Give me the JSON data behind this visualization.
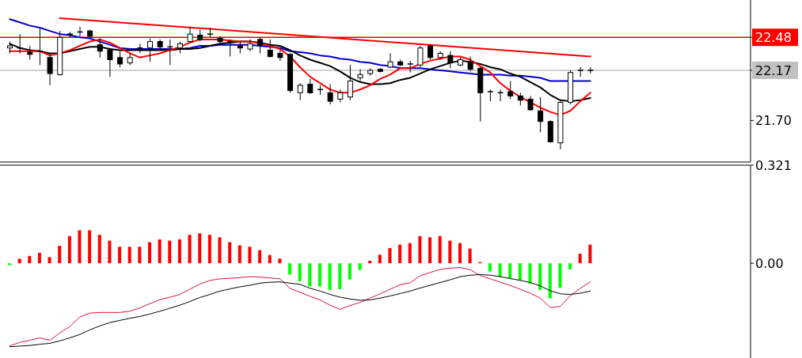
{
  "chart_data": [
    {
      "type": "candlestick",
      "categories": [
        null,
        null,
        null,
        null,
        null,
        null,
        null,
        null,
        null,
        null,
        null,
        null,
        null,
        null,
        null,
        null,
        null,
        null,
        null,
        null,
        null,
        null,
        null,
        null,
        null,
        null,
        null,
        null,
        null,
        null,
        null,
        null,
        null,
        null,
        null,
        null,
        null,
        null,
        null,
        null,
        null,
        null,
        null,
        null,
        null,
        null,
        null,
        null,
        null,
        null,
        null,
        null,
        null,
        null,
        null,
        null,
        null,
        null,
        null
      ],
      "ohlc": [
        [
          22.38,
          22.44,
          22.33,
          22.4
        ],
        [
          22.37,
          22.51,
          22.33,
          22.38
        ],
        [
          22.34,
          22.4,
          22.27,
          22.32
        ],
        [
          22.35,
          22.56,
          22.22,
          22.34
        ],
        [
          22.29,
          22.33,
          22.03,
          22.14
        ],
        [
          22.13,
          22.54,
          22.12,
          22.48
        ],
        [
          22.5,
          22.53,
          22.48,
          22.51
        ],
        [
          22.53,
          22.58,
          22.49,
          22.52
        ],
        [
          22.54,
          22.55,
          22.48,
          22.49
        ],
        [
          22.41,
          22.47,
          22.29,
          22.35
        ],
        [
          22.36,
          22.38,
          22.11,
          22.27
        ],
        [
          22.29,
          22.35,
          22.2,
          22.23
        ],
        [
          22.24,
          22.33,
          22.22,
          22.29
        ],
        [
          22.37,
          22.42,
          22.33,
          22.38
        ],
        [
          22.38,
          22.47,
          22.25,
          22.44
        ],
        [
          22.44,
          22.46,
          22.37,
          22.39
        ],
        [
          22.39,
          22.46,
          22.22,
          22.38
        ],
        [
          22.38,
          22.44,
          22.33,
          22.42
        ],
        [
          22.44,
          22.58,
          22.43,
          22.51
        ],
        [
          22.5,
          22.55,
          22.44,
          22.46
        ],
        [
          22.51,
          22.57,
          22.48,
          22.5
        ],
        [
          22.47,
          22.49,
          22.42,
          22.44
        ],
        [
          22.44,
          22.46,
          22.3,
          22.43
        ],
        [
          22.4,
          22.44,
          22.33,
          22.38
        ],
        [
          22.37,
          22.46,
          22.35,
          22.42
        ],
        [
          22.46,
          22.48,
          22.33,
          22.4
        ],
        [
          22.36,
          22.46,
          22.29,
          22.3
        ],
        [
          22.33,
          22.36,
          22.26,
          22.29
        ],
        [
          22.32,
          22.33,
          21.96,
          21.98
        ],
        [
          21.96,
          22.05,
          21.89,
          22.03
        ],
        [
          22.04,
          22.09,
          21.95,
          21.96
        ],
        [
          21.99,
          22.03,
          21.94,
          21.98
        ],
        [
          21.96,
          22.04,
          21.85,
          21.88
        ],
        [
          21.9,
          21.99,
          21.87,
          21.96
        ],
        [
          21.92,
          22.22,
          21.89,
          22.07
        ],
        [
          22.1,
          22.18,
          22.07,
          22.13
        ],
        [
          22.14,
          22.19,
          22.12,
          22.17
        ],
        [
          22.18,
          22.19,
          22.15,
          22.16
        ],
        [
          22.2,
          22.33,
          22.19,
          22.25
        ],
        [
          22.25,
          22.27,
          22.21,
          22.22
        ],
        [
          22.23,
          22.26,
          22.15,
          22.22
        ],
        [
          22.22,
          22.4,
          22.2,
          22.38
        ],
        [
          22.4,
          22.41,
          22.27,
          22.29
        ],
        [
          22.29,
          22.35,
          22.27,
          22.33
        ],
        [
          22.31,
          22.35,
          22.19,
          22.24
        ],
        [
          22.22,
          22.29,
          22.21,
          22.27
        ],
        [
          22.25,
          22.3,
          22.16,
          22.18
        ],
        [
          22.19,
          22.2,
          21.69,
          21.96
        ],
        [
          21.97,
          21.99,
          21.88,
          21.96
        ],
        [
          21.96,
          21.99,
          21.88,
          21.95
        ],
        [
          21.97,
          22.07,
          21.9,
          21.93
        ],
        [
          21.93,
          21.96,
          21.84,
          21.89
        ],
        [
          21.9,
          21.93,
          21.79,
          21.8
        ],
        [
          21.79,
          21.92,
          21.59,
          21.69
        ],
        [
          21.69,
          21.7,
          21.49,
          21.5
        ],
        [
          21.49,
          21.88,
          21.43,
          21.87
        ],
        [
          21.87,
          22.17,
          21.85,
          22.15
        ],
        [
          22.17,
          22.2,
          22.11,
          22.17
        ],
        [
          22.17,
          22.2,
          22.14,
          22.17
        ]
      ],
      "series": [
        {
          "type": "line",
          "color": "#0000cd",
          "values": [
            22.65,
            22.62,
            22.59,
            22.57,
            22.54,
            22.51,
            22.5,
            22.48,
            22.47,
            22.44,
            22.41,
            22.38,
            22.37,
            22.37,
            22.37,
            22.37,
            22.37,
            22.37,
            22.38,
            22.4,
            22.4,
            22.41,
            22.41,
            22.41,
            22.41,
            22.4,
            22.39,
            22.38,
            22.35,
            22.34,
            22.33,
            22.31,
            22.3,
            22.28,
            22.27,
            22.25,
            22.24,
            22.22,
            22.21,
            22.19,
            22.19,
            22.19,
            22.18,
            22.17,
            22.16,
            22.15,
            22.14,
            22.13,
            22.13,
            22.13,
            22.12,
            22.12,
            22.11,
            22.1,
            22.07,
            22.07,
            22.07,
            22.07,
            22.07
          ]
        },
        {
          "type": "line",
          "color": "#000000",
          "values": [
            22.42,
            22.38,
            22.36,
            22.35,
            22.33,
            22.33,
            22.35,
            22.37,
            22.39,
            22.39,
            22.37,
            22.36,
            22.36,
            22.36,
            22.36,
            22.36,
            22.36,
            22.37,
            22.37,
            22.38,
            22.4,
            22.42,
            22.43,
            22.44,
            22.44,
            22.43,
            22.41,
            22.4,
            22.36,
            22.31,
            22.27,
            22.24,
            22.21,
            22.16,
            22.1,
            22.06,
            22.04,
            22.04,
            22.05,
            22.08,
            22.1,
            22.14,
            22.18,
            22.21,
            22.24,
            22.26,
            22.25,
            22.23,
            22.2,
            22.18,
            22.14,
            22.11,
            22.06,
            22.01,
            21.94,
            21.89,
            21.88,
            21.89,
            21.91
          ]
        },
        {
          "type": "line",
          "color": "#ff0000",
          "values": [
            22.35,
            22.35,
            22.35,
            22.35,
            22.31,
            22.33,
            22.36,
            22.4,
            22.44,
            22.46,
            22.43,
            22.38,
            22.33,
            22.29,
            22.31,
            22.33,
            22.36,
            22.39,
            22.43,
            22.46,
            22.46,
            22.46,
            22.45,
            22.44,
            22.44,
            22.42,
            22.4,
            22.37,
            22.3,
            22.2,
            22.11,
            22.05,
            21.99,
            21.96,
            21.96,
            21.99,
            22.03,
            22.09,
            22.13,
            22.19,
            22.19,
            22.23,
            22.26,
            22.28,
            22.3,
            22.3,
            22.27,
            22.21,
            22.15,
            22.05,
            21.98,
            21.92,
            21.87,
            21.82,
            21.78,
            21.75,
            21.79,
            21.88,
            21.96
          ]
        },
        {
          "type": "line",
          "color": "#ff0000",
          "values": [
            null,
            null,
            null,
            null,
            null,
            22.66,
            null,
            null,
            null,
            null,
            null,
            null,
            null,
            null,
            null,
            null,
            null,
            null,
            null,
            null,
            null,
            null,
            null,
            null,
            null,
            null,
            null,
            null,
            null,
            null,
            null,
            null,
            null,
            null,
            null,
            null,
            null,
            null,
            null,
            null,
            null,
            null,
            null,
            null,
            null,
            null,
            null,
            null,
            null,
            null,
            null,
            null,
            null,
            null,
            null,
            null,
            null,
            null,
            22.3
          ]
        }
      ],
      "ylim": [
        21.31,
        22.83
      ],
      "yticks": [
        {
          "value": 22.48,
          "label": "22.48"
        },
        {
          "value": 22.17,
          "label": "22.17"
        },
        {
          "value": 21.7,
          "label": "21.70"
        }
      ],
      "ref_lines": [
        {
          "axis": "y",
          "value": 22.48,
          "color": "#ff0000"
        },
        {
          "axis": "y",
          "value": 22.17,
          "color": "#c0c0c0"
        }
      ],
      "tick_labels": "y"
    },
    {
      "type": "bar",
      "categories": [
        null,
        null,
        null,
        null,
        null,
        null,
        null,
        null,
        null,
        null,
        null,
        null,
        null,
        null,
        null,
        null,
        null,
        null,
        null,
        null,
        null,
        null,
        null,
        null,
        null,
        null,
        null,
        null,
        null,
        null,
        null,
        null,
        null,
        null,
        null,
        null,
        null,
        null,
        null,
        null,
        null,
        null,
        null,
        null,
        null,
        null,
        null,
        null,
        null,
        null,
        null,
        null,
        null,
        null,
        null,
        null,
        null,
        null,
        null
      ],
      "series": [
        {
          "colors": [
            "#00ff00",
            "#ff0000",
            "#ff0000",
            "#ff0000",
            "#ff0000",
            "#ff0000",
            "#ff0000",
            "#ff0000",
            "#ff0000",
            "#ff0000",
            "#ff0000",
            "#ff0000",
            "#ff0000",
            "#ff0000",
            "#ff0000",
            "#ff0000",
            "#ff0000",
            "#ff0000",
            "#ff0000",
            "#ff0000",
            "#ff0000",
            "#ff0000",
            "#ff0000",
            "#ff0000",
            "#ff0000",
            "#ff0000",
            "#ff0000",
            "#ff0000",
            "#00ff00",
            "#00ff00",
            "#00ff00",
            "#00ff00",
            "#00ff00",
            "#00ff00",
            "#00ff00",
            "#00ff00",
            "#ff0000",
            "#ff0000",
            "#ff0000",
            "#ff0000",
            "#ff0000",
            "#ff0000",
            "#ff0000",
            "#ff0000",
            "#ff0000",
            "#ff0000",
            "#ff0000",
            "#ff0000",
            "#00ff00",
            "#00ff00",
            "#00ff00",
            "#00ff00",
            "#00ff00",
            "#00ff00",
            "#00ff00",
            "#00ff00",
            "#00ff00",
            "#ff0000",
            "#ff0000"
          ],
          "values": [
            -0.006,
            0.015,
            0.024,
            0.034,
            0.02,
            0.057,
            0.089,
            0.108,
            0.108,
            0.093,
            0.074,
            0.054,
            0.054,
            0.054,
            0.069,
            0.078,
            0.074,
            0.078,
            0.093,
            0.098,
            0.093,
            0.085,
            0.069,
            0.059,
            0.054,
            0.043,
            0.027,
            0.015,
            -0.037,
            -0.059,
            -0.076,
            -0.076,
            -0.087,
            -0.085,
            -0.053,
            -0.022,
            0.008,
            0.028,
            0.05,
            0.061,
            0.066,
            0.089,
            0.085,
            0.089,
            0.074,
            0.066,
            0.048,
            0.004,
            -0.027,
            -0.044,
            -0.05,
            -0.056,
            -0.067,
            -0.087,
            -0.115,
            -0.08,
            -0.02,
            0.031,
            0.061
          ]
        },
        {
          "type": "line",
          "color": "#dc143c",
          "values": [
            -0.27,
            -0.259,
            -0.252,
            -0.244,
            -0.252,
            -0.228,
            -0.207,
            -0.176,
            -0.163,
            -0.161,
            -0.161,
            -0.161,
            -0.157,
            -0.146,
            -0.132,
            -0.119,
            -0.111,
            -0.102,
            -0.085,
            -0.068,
            -0.056,
            -0.051,
            -0.049,
            -0.047,
            -0.044,
            -0.045,
            -0.048,
            -0.051,
            -0.082,
            -0.095,
            -0.108,
            -0.12,
            -0.137,
            -0.151,
            -0.138,
            -0.128,
            -0.114,
            -0.1,
            -0.085,
            -0.07,
            -0.064,
            -0.041,
            -0.03,
            -0.02,
            -0.016,
            -0.014,
            -0.021,
            -0.04,
            -0.051,
            -0.062,
            -0.073,
            -0.085,
            -0.098,
            -0.114,
            -0.145,
            -0.141,
            -0.106,
            -0.082,
            -0.061
          ]
        },
        {
          "type": "line",
          "color": "#000000",
          "values": [
            -0.273,
            -0.271,
            -0.269,
            -0.265,
            -0.262,
            -0.254,
            -0.244,
            -0.233,
            -0.218,
            -0.205,
            -0.194,
            -0.187,
            -0.18,
            -0.174,
            -0.166,
            -0.157,
            -0.147,
            -0.137,
            -0.125,
            -0.112,
            -0.102,
            -0.091,
            -0.084,
            -0.077,
            -0.072,
            -0.065,
            -0.062,
            -0.061,
            -0.065,
            -0.069,
            -0.082,
            -0.091,
            -0.102,
            -0.111,
            -0.117,
            -0.121,
            -0.12,
            -0.114,
            -0.107,
            -0.099,
            -0.091,
            -0.081,
            -0.072,
            -0.063,
            -0.054,
            -0.044,
            -0.039,
            -0.037,
            -0.039,
            -0.044,
            -0.05,
            -0.056,
            -0.063,
            -0.074,
            -0.09,
            -0.1,
            -0.102,
            -0.098,
            -0.091
          ]
        }
      ],
      "ylim": [
        -0.31,
        0.321
      ],
      "yticks": [
        0.321,
        {
          "value": 0,
          "label": "0.00"
        }
      ],
      "tick_labels": "y"
    }
  ]
}
